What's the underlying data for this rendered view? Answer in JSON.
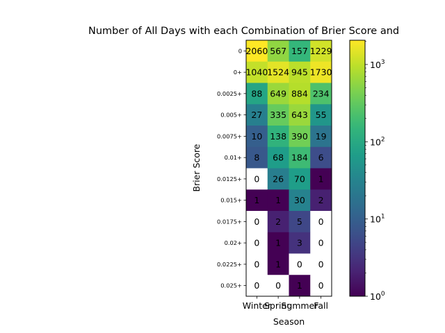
{
  "chart_data": {
    "type": "heatmap",
    "title": "Number of All Days with each Combination of Brier Score and",
    "xlabel": "Season",
    "ylabel": "Brier Score",
    "columns": [
      "Winter",
      "Spring",
      "Summer",
      "Fall"
    ],
    "rows": [
      "0",
      "0+",
      "0.0025+",
      "0.005+",
      "0.0075+",
      "0.01+",
      "0.0125+",
      "0.015+",
      "0.0175+",
      "0.02+",
      "0.0225+",
      "0.025+"
    ],
    "values": [
      [
        2060,
        567,
        157,
        1229
      ],
      [
        1040,
        1524,
        945,
        1730
      ],
      [
        88,
        649,
        884,
        234
      ],
      [
        27,
        335,
        643,
        55
      ],
      [
        10,
        138,
        390,
        19
      ],
      [
        8,
        68,
        184,
        6
      ],
      [
        0,
        26,
        70,
        1
      ],
      [
        1,
        1,
        30,
        2
      ],
      [
        0,
        2,
        5,
        0
      ],
      [
        0,
        1,
        3,
        0
      ],
      [
        0,
        1,
        0,
        0
      ],
      [
        0,
        0,
        1,
        0
      ]
    ],
    "color_scale": "log",
    "colormap": "viridis",
    "zero_color": "#ffffff",
    "vmin": 1,
    "vmax": 2060,
    "colorbar_ticks": [
      {
        "value": 1,
        "base": "10",
        "exp": "0"
      },
      {
        "value": 10,
        "base": "10",
        "exp": "1"
      },
      {
        "value": 100,
        "base": "10",
        "exp": "2"
      },
      {
        "value": 1000,
        "base": "10",
        "exp": "3"
      }
    ]
  }
}
